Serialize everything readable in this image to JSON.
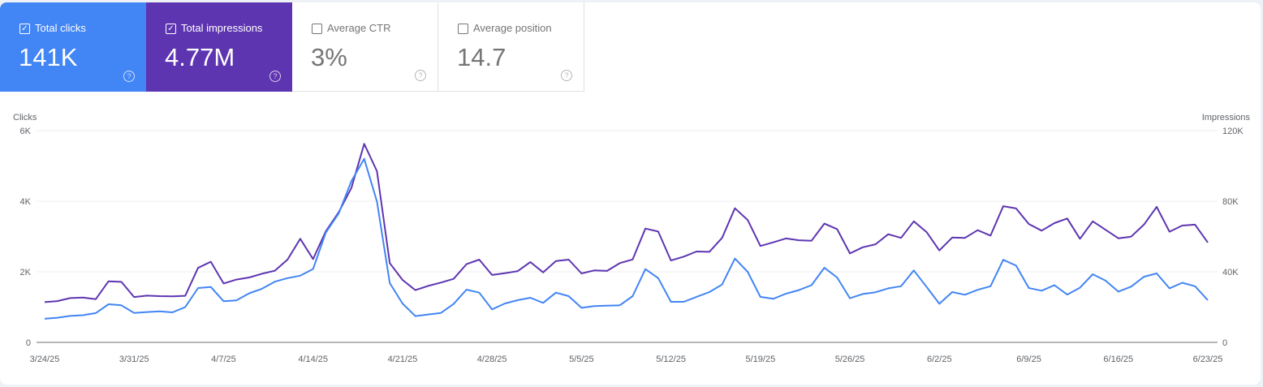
{
  "metrics": [
    {
      "label": "Total clicks",
      "value": "141K",
      "checked": true,
      "color": "#4285f4"
    },
    {
      "label": "Total impressions",
      "value": "4.77M",
      "checked": true,
      "color": "#5e35b1"
    },
    {
      "label": "Average CTR",
      "value": "3%",
      "checked": false
    },
    {
      "label": "Average position",
      "value": "14.7",
      "checked": false
    }
  ],
  "icons": {
    "checkbox": "checkbox-icon",
    "help": "help-circle-icon"
  },
  "chart_data": {
    "type": "line",
    "grid": true,
    "left_axis": {
      "label": "Clicks",
      "ylim": [
        0,
        6000
      ],
      "ticks": [
        "0",
        "2K",
        "4K",
        "6K"
      ]
    },
    "right_axis": {
      "label": "Impressions",
      "ylim": [
        0,
        120000
      ],
      "ticks": [
        "0",
        "40K",
        "80K",
        "120K"
      ]
    },
    "x_ticks": [
      "3/24/25",
      "3/31/25",
      "4/7/25",
      "4/14/25",
      "4/21/25",
      "4/28/25",
      "5/5/25",
      "5/12/25",
      "5/19/25",
      "5/26/25",
      "6/2/25",
      "6/9/25",
      "6/16/25",
      "6/23/25"
    ],
    "x": [
      "3/24/25",
      "3/25/25",
      "3/26/25",
      "3/27/25",
      "3/28/25",
      "3/29/25",
      "3/30/25",
      "3/31/25",
      "4/1/25",
      "4/2/25",
      "4/3/25",
      "4/4/25",
      "4/5/25",
      "4/6/25",
      "4/7/25",
      "4/8/25",
      "4/9/25",
      "4/10/25",
      "4/11/25",
      "4/12/25",
      "4/13/25",
      "4/14/25",
      "4/15/25",
      "4/16/25",
      "4/17/25",
      "4/18/25",
      "4/19/25",
      "4/20/25",
      "4/21/25",
      "4/22/25",
      "4/23/25",
      "4/24/25",
      "4/25/25",
      "4/26/25",
      "4/27/25",
      "4/28/25",
      "4/29/25",
      "4/30/25",
      "5/1/25",
      "5/2/25",
      "5/3/25",
      "5/4/25",
      "5/5/25",
      "5/6/25",
      "5/7/25",
      "5/8/25",
      "5/9/25",
      "5/10/25",
      "5/11/25",
      "5/12/25",
      "5/13/25",
      "5/14/25",
      "5/15/25",
      "5/16/25",
      "5/17/25",
      "5/18/25",
      "5/19/25",
      "5/20/25",
      "5/21/25",
      "5/22/25",
      "5/23/25",
      "5/24/25",
      "5/25/25",
      "5/26/25",
      "5/27/25",
      "5/28/25",
      "5/29/25",
      "5/30/25",
      "5/31/25",
      "6/1/25",
      "6/2/25",
      "6/3/25",
      "6/4/25",
      "6/5/25",
      "6/6/25",
      "6/7/25",
      "6/8/25",
      "6/9/25",
      "6/10/25",
      "6/11/25",
      "6/12/25",
      "6/13/25",
      "6/14/25",
      "6/15/25",
      "6/16/25",
      "6/17/25",
      "6/18/25",
      "6/19/25",
      "6/20/25",
      "6/21/25",
      "6/22/25",
      "6/23/25"
    ],
    "series": [
      {
        "name": "Clicks",
        "axis": "left",
        "color": "#4285f4",
        "values": [
          670,
          700,
          750,
          770,
          830,
          1080,
          1050,
          835,
          860,
          880,
          850,
          1000,
          1540,
          1570,
          1165,
          1190,
          1390,
          1520,
          1720,
          1820,
          1890,
          2080,
          3110,
          3650,
          4570,
          5200,
          3990,
          1680,
          1100,
          745,
          790,
          835,
          1090,
          1495,
          1410,
          935,
          1100,
          1195,
          1265,
          1120,
          1410,
          1310,
          980,
          1030,
          1040,
          1050,
          1310,
          2075,
          1820,
          1150,
          1150,
          1290,
          1425,
          1640,
          2375,
          2000,
          1290,
          1235,
          1380,
          1480,
          1620,
          2115,
          1840,
          1250,
          1370,
          1420,
          1530,
          1590,
          2040,
          1570,
          1095,
          1425,
          1350,
          1490,
          1590,
          2340,
          2175,
          1540,
          1465,
          1620,
          1355,
          1550,
          1930,
          1750,
          1440,
          1580,
          1860,
          1955,
          1530,
          1690,
          1590,
          1195
        ]
      },
      {
        "name": "Impressions",
        "axis": "right",
        "color": "#5e35b1",
        "values": [
          22800,
          23400,
          25100,
          25400,
          24500,
          34600,
          34300,
          25700,
          26500,
          26200,
          26100,
          26400,
          42200,
          45700,
          33400,
          35600,
          36800,
          38900,
          40600,
          46900,
          58700,
          47200,
          63000,
          73700,
          87500,
          112500,
          97000,
          44900,
          35400,
          29600,
          32000,
          33900,
          36000,
          44300,
          46900,
          38200,
          39200,
          40300,
          45500,
          39700,
          46100,
          46900,
          39100,
          40800,
          40500,
          44900,
          47000,
          64500,
          62800,
          46400,
          48600,
          51500,
          51300,
          59200,
          76000,
          69400,
          54600,
          56700,
          58900,
          57900,
          57600,
          67300,
          64200,
          50400,
          53900,
          55600,
          61300,
          59200,
          68600,
          62500,
          52100,
          59400,
          59200,
          63600,
          60500,
          77200,
          75900,
          67100,
          63300,
          67600,
          70200,
          58700,
          68600,
          63800,
          59000,
          59900,
          66700,
          76800,
          62700,
          66200,
          66700,
          56600
        ]
      }
    ]
  }
}
